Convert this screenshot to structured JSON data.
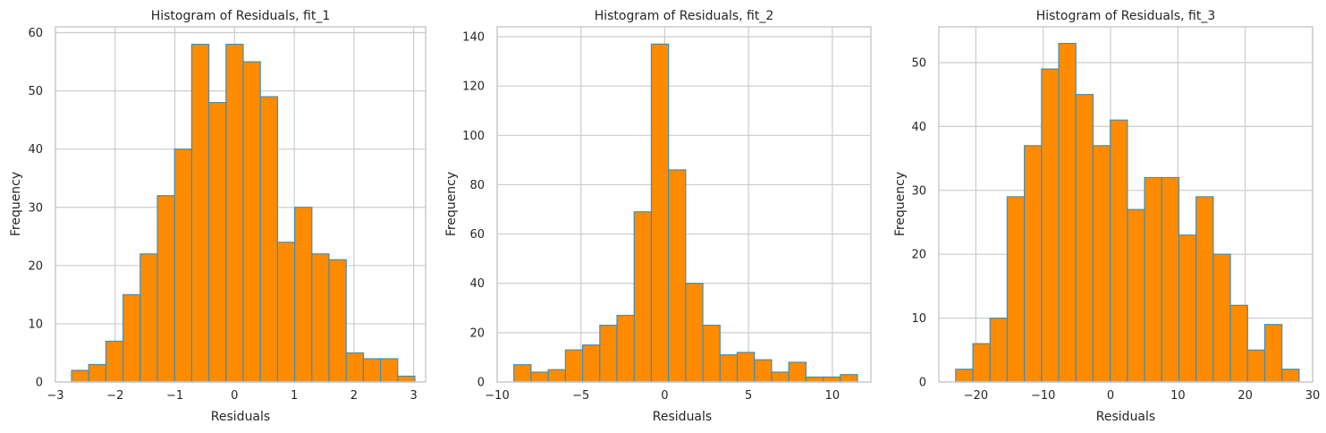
{
  "figure": {
    "background": "#ffffff",
    "bar_fill": "#ff8c00",
    "bar_edge": "#3a8fc4",
    "grid_color": "#cccccc"
  },
  "chart_data": [
    {
      "type": "bar",
      "title": "Histogram of Residuals, fit_1",
      "xlabel": "Residuals",
      "ylabel": "Frequency",
      "xlim": [
        -3.0,
        3.2
      ],
      "ylim": [
        0,
        61
      ],
      "xticks": [
        -3,
        -2,
        -1,
        0,
        1,
        2,
        3
      ],
      "xtick_labels": [
        "−3",
        "−2",
        "−1",
        "0",
        "1",
        "2",
        "3"
      ],
      "yticks": [
        0,
        10,
        20,
        30,
        40,
        50,
        60
      ],
      "grid": true,
      "bin_start": -2.73,
      "bin_end": 3.02,
      "values": [
        2,
        3,
        7,
        15,
        22,
        32,
        40,
        58,
        48,
        58,
        55,
        49,
        24,
        30,
        22,
        21,
        5,
        4,
        4,
        1
      ]
    },
    {
      "type": "bar",
      "title": "Histogram of Residuals, fit_2",
      "xlabel": "Residuals",
      "ylabel": "Frequency",
      "xlim": [
        -10.0,
        12.3
      ],
      "ylim": [
        0,
        144
      ],
      "xticks": [
        -10,
        -5,
        0,
        5,
        10
      ],
      "xtick_labels": [
        "−10",
        "−5",
        "0",
        "5",
        "10"
      ],
      "yticks": [
        0,
        20,
        40,
        60,
        80,
        100,
        120,
        140
      ],
      "grid": true,
      "bin_start": -9.0,
      "bin_end": 11.5,
      "values": [
        7,
        4,
        5,
        13,
        15,
        23,
        27,
        69,
        137,
        86,
        40,
        23,
        11,
        12,
        9,
        4,
        8,
        2,
        2,
        3
      ]
    },
    {
      "type": "bar",
      "title": "Histogram of Residuals, fit_3",
      "xlabel": "Residuals",
      "ylabel": "Frequency",
      "xlim": [
        -25.5,
        30.0
      ],
      "ylim": [
        0,
        55.6
      ],
      "xticks": [
        -20,
        -10,
        0,
        10,
        20,
        30
      ],
      "xtick_labels": [
        "−20",
        "−10",
        "0",
        "10",
        "20",
        "30"
      ],
      "yticks": [
        0,
        10,
        20,
        30,
        40,
        50
      ],
      "grid": true,
      "bin_start": -23.0,
      "bin_end": 28.0,
      "values": [
        2,
        6,
        10,
        29,
        37,
        49,
        53,
        45,
        37,
        41,
        27,
        32,
        32,
        23,
        29,
        20,
        12,
        5,
        9,
        2
      ]
    }
  ]
}
